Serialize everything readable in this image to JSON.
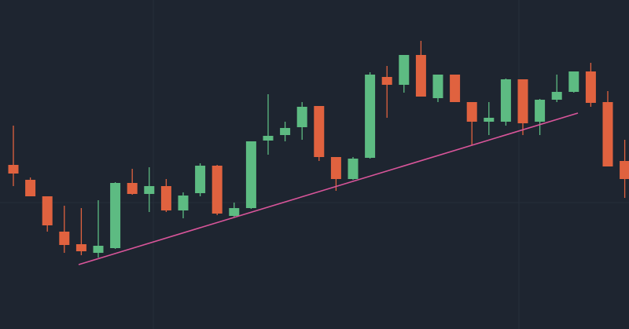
{
  "chart_data": {
    "type": "candlestick",
    "up_color": "#5dbb82",
    "down_color": "#e0623f",
    "ylim": [
      0,
      419
    ],
    "candles": [
      {
        "open": 209,
        "high": 259,
        "low": 182,
        "close": 198
      },
      {
        "open": 190,
        "high": 193,
        "low": 169,
        "close": 169
      },
      {
        "open": 169,
        "high": 169,
        "low": 124,
        "close": 132
      },
      {
        "open": 124,
        "high": 157,
        "low": 97,
        "close": 107
      },
      {
        "open": 108,
        "high": 154,
        "low": 94,
        "close": 99
      },
      {
        "open": 97,
        "high": 164,
        "low": 91,
        "close": 106
      },
      {
        "open": 103,
        "high": 187,
        "low": 102,
        "close": 186
      },
      {
        "open": 186,
        "high": 204,
        "low": 171,
        "close": 172
      },
      {
        "open": 172,
        "high": 206,
        "low": 149,
        "close": 182
      },
      {
        "open": 182,
        "high": 191,
        "low": 149,
        "close": 151
      },
      {
        "open": 151,
        "high": 174,
        "low": 141,
        "close": 170
      },
      {
        "open": 173,
        "high": 211,
        "low": 169,
        "close": 208
      },
      {
        "open": 208,
        "high": 209,
        "low": 145,
        "close": 147
      },
      {
        "open": 144,
        "high": 161,
        "low": 143,
        "close": 154
      },
      {
        "open": 154,
        "high": 239,
        "low": 153,
        "close": 239
      },
      {
        "open": 240,
        "high": 299,
        "low": 222,
        "close": 246
      },
      {
        "open": 247,
        "high": 264,
        "low": 239,
        "close": 256
      },
      {
        "open": 257,
        "high": 289,
        "low": 241,
        "close": 283
      },
      {
        "open": 284,
        "high": 284,
        "low": 214,
        "close": 219
      },
      {
        "open": 219,
        "high": 219,
        "low": 176,
        "close": 191
      },
      {
        "open": 191,
        "high": 219,
        "low": 190,
        "close": 217
      },
      {
        "open": 218,
        "high": 327,
        "low": 217,
        "close": 324
      },
      {
        "open": 321,
        "high": 335,
        "low": 269,
        "close": 311
      },
      {
        "open": 311,
        "high": 349,
        "low": 301,
        "close": 349
      },
      {
        "open": 349,
        "high": 367,
        "low": 296,
        "close": 296
      },
      {
        "open": 294,
        "high": 324,
        "low": 289,
        "close": 324
      },
      {
        "open": 324,
        "high": 324,
        "low": 289,
        "close": 289
      },
      {
        "open": 289,
        "high": 289,
        "low": 234,
        "close": 264
      },
      {
        "open": 264,
        "high": 289,
        "low": 247,
        "close": 269
      },
      {
        "open": 264,
        "high": 319,
        "low": 259,
        "close": 318
      },
      {
        "open": 318,
        "high": 318,
        "low": 247,
        "close": 262
      },
      {
        "open": 264,
        "high": 293,
        "low": 247,
        "close": 292
      },
      {
        "open": 292,
        "high": 324,
        "low": 289,
        "close": 302
      },
      {
        "open": 302,
        "high": 328,
        "low": 301,
        "close": 328
      },
      {
        "open": 328,
        "high": 339,
        "low": 283,
        "close": 288
      },
      {
        "open": 289,
        "high": 303,
        "low": 207,
        "close": 207
      },
      {
        "open": 214,
        "high": 241,
        "low": 167,
        "close": 191
      }
    ]
  }
}
